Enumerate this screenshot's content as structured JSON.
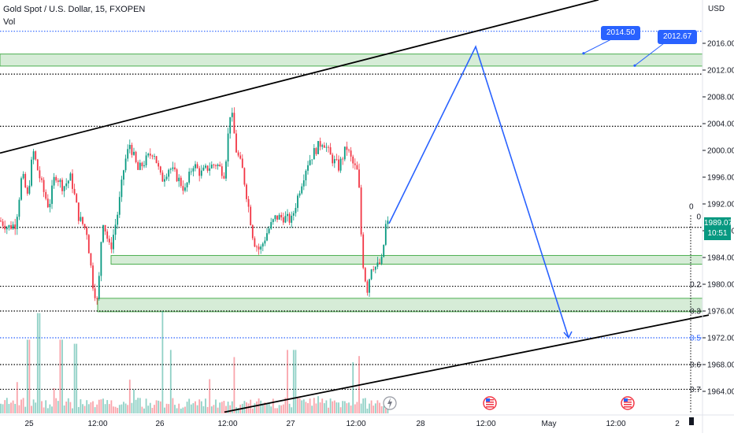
{
  "header": {
    "title": "Gold Spot / U.S. Dollar, 15, FXOPEN",
    "volume_label": "Vol"
  },
  "price_axis": {
    "unit": "USD",
    "current_price": "1989.07",
    "countdown": "10:51"
  },
  "callouts": [
    "2014.50",
    "2012.67"
  ],
  "colors": {
    "up": "#089981",
    "down": "#f23645",
    "zone_fill": "#c8e6c9",
    "zone_border": "#4caf50",
    "projection": "#2962ff",
    "channel": "#000000",
    "fib_blue": "#2962ff"
  },
  "icons": [
    "lightning-icon",
    "us-flag-icon",
    "us-flag-icon"
  ],
  "chart_data": {
    "type": "candlestick",
    "title": "Gold Spot / U.S. Dollar, 15, FXOPEN",
    "ylim": [
      1961,
      2022
    ],
    "y_ticks": [
      2016,
      2012,
      2008,
      2004,
      2000,
      1996,
      1992,
      1988,
      1984,
      1980,
      1976,
      1972,
      1968,
      1964
    ],
    "y_tick_labels": [
      "2016.00",
      "2012.00",
      "2008.00",
      "2004.00",
      "2000.00",
      "1996.00",
      "1992.00",
      "1988.00",
      "1984.00",
      "1980.00",
      "1976.00",
      "1972.00",
      "1968.00",
      "1964.00"
    ],
    "x_ticks": [
      "25",
      "12:00",
      "26",
      "12:00",
      "27",
      "12:00",
      "28",
      "12:00",
      "May",
      "12:00",
      "2"
    ],
    "x_tick_x": [
      37,
      124,
      203,
      289,
      369,
      452,
      534,
      617,
      697,
      782,
      860
    ],
    "candle_path_points": [
      {
        "x": 0,
        "y": 1989.5
      },
      {
        "x": 10,
        "y": 1988.5
      },
      {
        "x": 20,
        "y": 1989.0
      },
      {
        "x": 28,
        "y": 1996.5
      },
      {
        "x": 35,
        "y": 1993.0
      },
      {
        "x": 42,
        "y": 2000.0
      },
      {
        "x": 48,
        "y": 1997.0
      },
      {
        "x": 55,
        "y": 1994.0
      },
      {
        "x": 62,
        "y": 1991.5
      },
      {
        "x": 70,
        "y": 1996.5
      },
      {
        "x": 80,
        "y": 1994.5
      },
      {
        "x": 90,
        "y": 1996.0
      },
      {
        "x": 100,
        "y": 1990.0
      },
      {
        "x": 110,
        "y": 1988.0
      },
      {
        "x": 118,
        "y": 1980.0
      },
      {
        "x": 124,
        "y": 1977.0
      },
      {
        "x": 130,
        "y": 1990.0
      },
      {
        "x": 140,
        "y": 1985.0
      },
      {
        "x": 150,
        "y": 1991.0
      },
      {
        "x": 158,
        "y": 1998.0
      },
      {
        "x": 165,
        "y": 2001.0
      },
      {
        "x": 175,
        "y": 1997.0
      },
      {
        "x": 185,
        "y": 1998.5
      },
      {
        "x": 195,
        "y": 2000.0
      },
      {
        "x": 205,
        "y": 1995.5
      },
      {
        "x": 215,
        "y": 1997.5
      },
      {
        "x": 225,
        "y": 1996.0
      },
      {
        "x": 235,
        "y": 1994.0
      },
      {
        "x": 245,
        "y": 1998.0
      },
      {
        "x": 255,
        "y": 1996.5
      },
      {
        "x": 265,
        "y": 1997.5
      },
      {
        "x": 275,
        "y": 1998.0
      },
      {
        "x": 285,
        "y": 1996.5
      },
      {
        "x": 293,
        "y": 2006.5
      },
      {
        "x": 300,
        "y": 2000.0
      },
      {
        "x": 308,
        "y": 1997.0
      },
      {
        "x": 315,
        "y": 1992.0
      },
      {
        "x": 322,
        "y": 1986.5
      },
      {
        "x": 330,
        "y": 1985.0
      },
      {
        "x": 340,
        "y": 1988.0
      },
      {
        "x": 350,
        "y": 1990.0
      },
      {
        "x": 360,
        "y": 1990.0
      },
      {
        "x": 370,
        "y": 1989.5
      },
      {
        "x": 380,
        "y": 1994.0
      },
      {
        "x": 390,
        "y": 1998.0
      },
      {
        "x": 400,
        "y": 2000.0
      },
      {
        "x": 410,
        "y": 2001.5
      },
      {
        "x": 420,
        "y": 1999.0
      },
      {
        "x": 430,
        "y": 1997.5
      },
      {
        "x": 440,
        "y": 2000.5
      },
      {
        "x": 448,
        "y": 1998.0
      },
      {
        "x": 455,
        "y": 1996.5
      },
      {
        "x": 460,
        "y": 1984.0
      },
      {
        "x": 466,
        "y": 1979.0
      },
      {
        "x": 472,
        "y": 1983.0
      },
      {
        "x": 478,
        "y": 1982.5
      },
      {
        "x": 485,
        "y": 1983.5
      },
      {
        "x": 490,
        "y": 1989.0
      },
      {
        "x": 494,
        "y": 1989.07
      }
    ],
    "volume_peaks": [
      {
        "x": 36,
        "h": 0.72
      },
      {
        "x": 49,
        "h": 0.98
      },
      {
        "x": 78,
        "h": 0.72
      },
      {
        "x": 96,
        "h": 0.68
      },
      {
        "x": 207,
        "h": 1.0
      },
      {
        "x": 216,
        "h": 0.62
      },
      {
        "x": 298,
        "h": 0.55
      },
      {
        "x": 366,
        "h": 0.62
      },
      {
        "x": 374,
        "h": 0.62
      },
      {
        "x": 448,
        "h": 0.5
      },
      {
        "x": 456,
        "h": 0.56
      }
    ],
    "zones": [
      {
        "from": 2012.6,
        "to": 2014.4,
        "x_start": 0
      },
      {
        "from": 1983.0,
        "to": 1984.3,
        "x_start": 141
      },
      {
        "from": 1975.9,
        "to": 1977.9,
        "x_start": 124
      }
    ],
    "channel_lines": [
      {
        "p1": {
          "x": 0,
          "y": 1999.6
        },
        "p2": {
          "x": 760,
          "y": 2022.5
        }
      },
      {
        "p1": {
          "x": 285,
          "y": 1960.9
        },
        "p2": {
          "x": 900,
          "y": 1975.4
        }
      }
    ],
    "horizontal_levels": [
      {
        "price": 2017.8,
        "style": "dotted",
        "color": "#2962ff",
        "x_start": 0
      },
      {
        "price": 2011.4,
        "style": "dotted",
        "color": "#000000",
        "x_start": 0
      },
      {
        "price": 2003.6,
        "style": "dotted",
        "color": "#000000",
        "x_start": 0
      },
      {
        "price": 1988.5,
        "style": "dotted",
        "color": "#000000",
        "x_start": 0
      },
      {
        "price": 1979.7,
        "style": "dotted",
        "color": "#000000",
        "x_start": 0
      },
      {
        "price": 1976.0,
        "style": "dotted",
        "color": "#000000",
        "x_start": 0
      },
      {
        "price": 1972.0,
        "style": "dotted",
        "color": "#2962ff",
        "x_start": 0
      },
      {
        "price": 1968.0,
        "style": "dotted",
        "color": "#000000",
        "x_start": 0
      },
      {
        "price": 1964.3,
        "style": "dotted",
        "color": "#000000",
        "x_start": 0
      }
    ],
    "fib_labels": [
      {
        "label": "0",
        "price": 1990.1
      },
      {
        "label": "0.2",
        "price": 1980.0
      },
      {
        "label": "0.3",
        "price": 1976.0
      },
      {
        "label": "0.5",
        "price": 1972.0
      },
      {
        "label": "0.6",
        "price": 1968.0
      },
      {
        "label": "0.7",
        "price": 1964.3
      }
    ],
    "projection_path": [
      {
        "x": 494,
        "y": 1989.07
      },
      {
        "x": 604,
        "y": 2015.5
      },
      {
        "x": 722,
        "y": 1972.0
      }
    ],
    "callout_points": [
      {
        "label": "2014.50",
        "x": 741,
        "y": 2014.5
      },
      {
        "label": "2012.67",
        "x": 806,
        "y": 2012.67
      }
    ],
    "vertical_marker_x": 877,
    "icon_positions": [
      {
        "name": "lightning-icon",
        "x": 495
      },
      {
        "name": "us-flag-icon",
        "x": 622
      },
      {
        "name": "us-flag-icon",
        "x": 797
      }
    ],
    "legend": "none",
    "grid": false
  }
}
